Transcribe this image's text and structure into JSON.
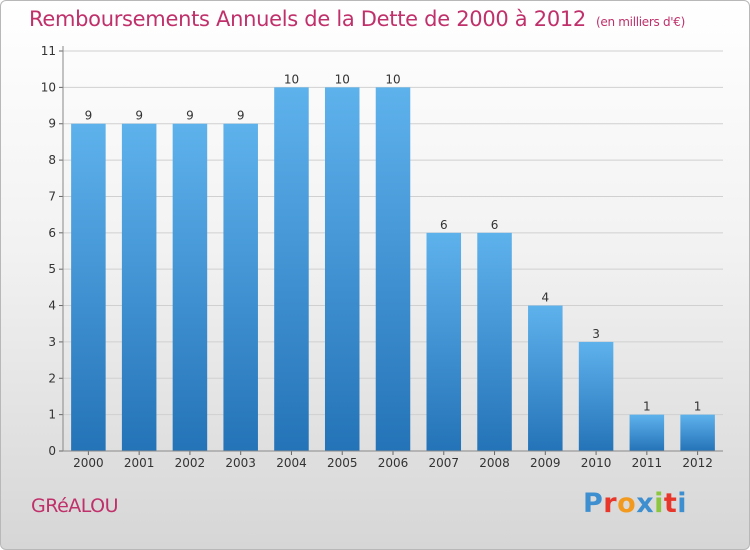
{
  "title": "Remboursements Annuels de la Dette de 2000 à 2012",
  "unit": "(en milliers d'€)",
  "commune": "GRéALOU",
  "logo": {
    "text": "Proxiti",
    "letter_colors": [
      "#3d8fd0",
      "#e8362a",
      "#f29a1f",
      "#3d8fd0",
      "#8cc63e",
      "#e8362a",
      "#3d8fd0"
    ]
  },
  "chart_data": {
    "type": "bar",
    "categories": [
      "2000",
      "2001",
      "2002",
      "2003",
      "2004",
      "2005",
      "2006",
      "2007",
      "2008",
      "2009",
      "2010",
      "2011",
      "2012"
    ],
    "values": [
      9,
      9,
      9,
      9,
      10,
      10,
      10,
      6,
      6,
      4,
      3,
      1,
      1
    ],
    "data_labels": [
      "9",
      "9",
      "9",
      "9",
      "10",
      "10",
      "10",
      "6",
      "6",
      "4",
      "3",
      "1",
      "1"
    ],
    "ylim": [
      0,
      11
    ],
    "yticks": [
      "0",
      "1",
      "2",
      "3",
      "4",
      "5",
      "6",
      "7",
      "8",
      "9",
      "10",
      "11"
    ],
    "grid": true,
    "colors": {
      "bar_light": "#5eb2ec",
      "bar_dark": "#2473b8",
      "grid": "#d0d0d0",
      "text": "#333333"
    }
  }
}
